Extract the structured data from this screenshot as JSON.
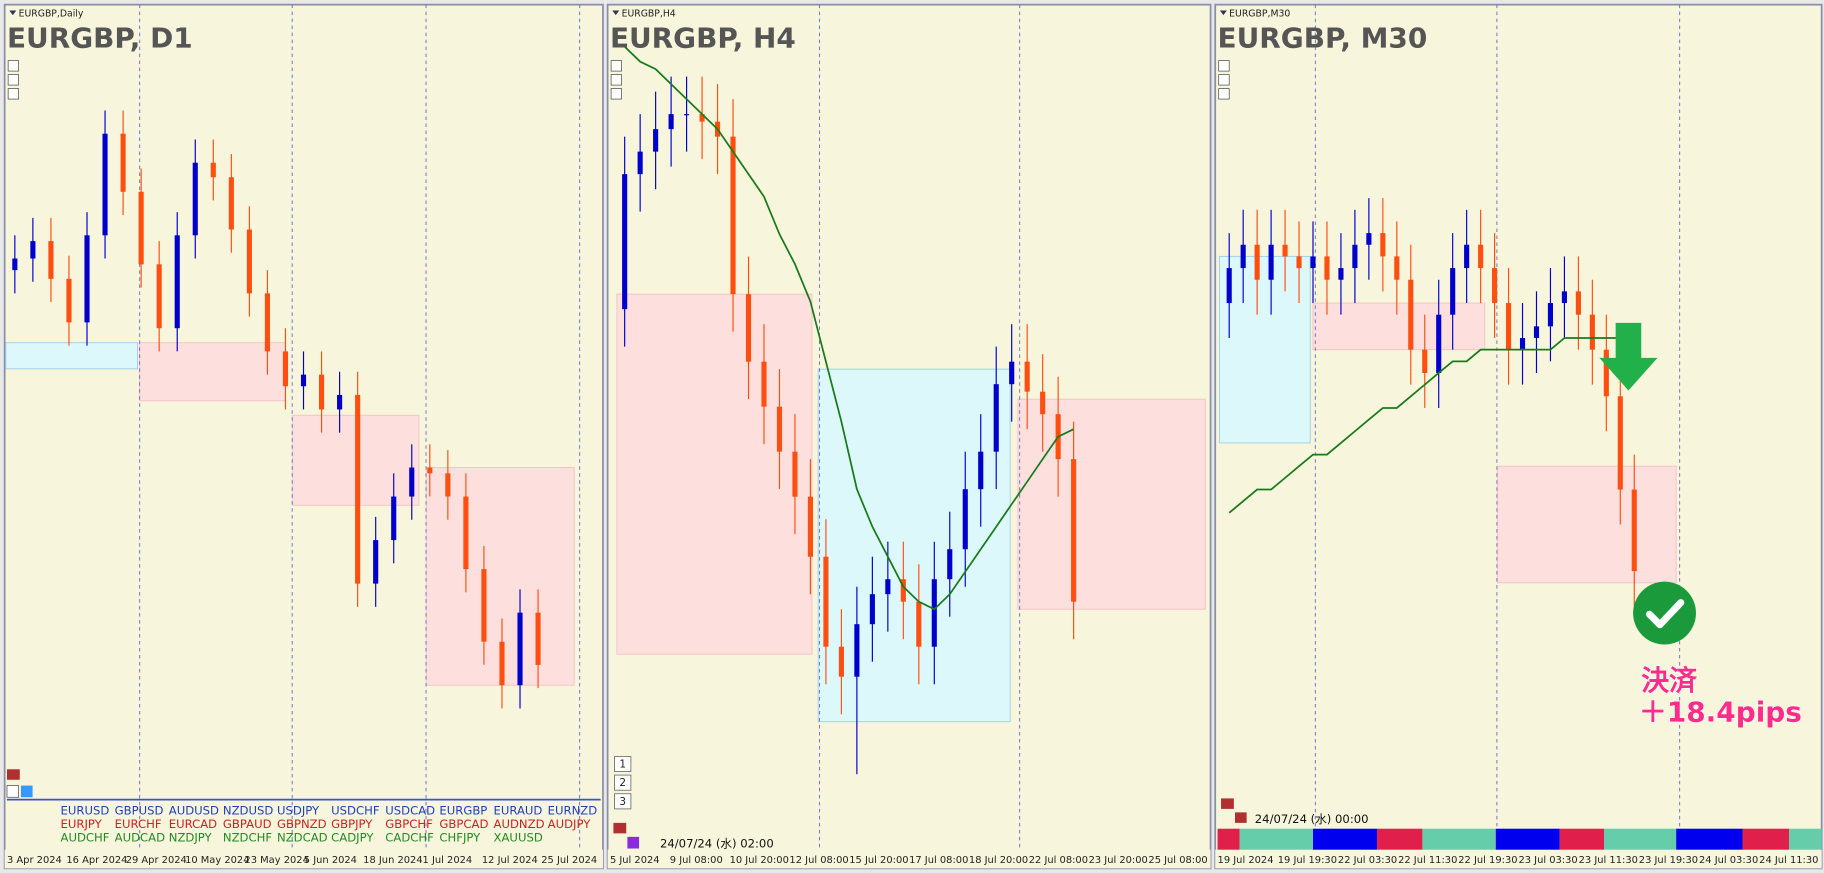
{
  "chart_data": [
    {
      "type": "candlestick",
      "label": "EURGBP,Daily",
      "title": "EURGBP, D1",
      "x_labels": [
        "3 Apr 2024",
        "16 Apr 2024",
        "29 Apr 2024",
        "10 May 2024",
        "23 May 2024",
        "5 Jun 2024",
        "18 Jun 2024",
        "1 Jul 2024",
        "12 Jul 2024",
        "25 Jul 2024"
      ],
      "ylim": [
        0.8364,
        0.8625
      ],
      "up_color": "#0000cc",
      "down_color": "#ff4f10",
      "open": [
        0.8548,
        0.8552,
        0.8558,
        0.8545,
        0.853,
        0.856,
        0.8595,
        0.8575,
        0.855,
        0.8528,
        0.856,
        0.8585,
        0.858,
        0.8562,
        0.854,
        0.852,
        0.8508,
        0.8512,
        0.85,
        0.8505,
        0.844,
        0.8455,
        0.847,
        0.848,
        0.8478,
        0.847,
        0.8445,
        0.842,
        0.8405,
        0.843
      ],
      "high": [
        0.856,
        0.8566,
        0.8566,
        0.8553,
        0.8568,
        0.8603,
        0.8603,
        0.8583,
        0.8558,
        0.8568,
        0.8593,
        0.8593,
        0.8588,
        0.857,
        0.8548,
        0.8528,
        0.852,
        0.852,
        0.8513,
        0.8513,
        0.8463,
        0.8478,
        0.8488,
        0.8488,
        0.8486,
        0.8478,
        0.8453,
        0.8428,
        0.8438,
        0.8438
      ],
      "low": [
        0.854,
        0.8544,
        0.8537,
        0.8522,
        0.8522,
        0.8552,
        0.8567,
        0.8542,
        0.852,
        0.852,
        0.8552,
        0.8572,
        0.8554,
        0.8532,
        0.8512,
        0.85,
        0.85,
        0.8492,
        0.8492,
        0.8432,
        0.8432,
        0.8447,
        0.8462,
        0.847,
        0.8462,
        0.8437,
        0.8412,
        0.8397,
        0.8397,
        0.8404
      ],
      "close": [
        0.8552,
        0.8558,
        0.8545,
        0.853,
        0.856,
        0.8595,
        0.8575,
        0.855,
        0.8528,
        0.856,
        0.8585,
        0.858,
        0.8562,
        0.854,
        0.852,
        0.8508,
        0.8512,
        0.85,
        0.8505,
        0.844,
        0.8455,
        0.847,
        0.848,
        0.8478,
        0.847,
        0.8445,
        0.842,
        0.8405,
        0.843,
        0.8412
      ],
      "zones": [
        {
          "start": 0,
          "end": 7.3,
          "low": 0.8514,
          "high": 0.8523,
          "color": "#ddf8fb"
        },
        {
          "start": 7.4,
          "end": 15.5,
          "low": 0.8503,
          "high": 0.8523,
          "color": "#fde0de"
        },
        {
          "start": 15.9,
          "end": 22.9,
          "low": 0.8467,
          "high": 0.8498,
          "color": "#fde0de"
        },
        {
          "start": 23.3,
          "end": 31.5,
          "low": 0.8405,
          "high": 0.848,
          "color": "#fde0de"
        }
      ]
    },
    {
      "type": "candlestick",
      "label": "EURGBP,H4",
      "title": "EURGBP, H4",
      "x_labels": [
        "5 Jul 2024",
        "9 Jul 08:00",
        "10 Jul 20:00",
        "12 Jul 08:00",
        "15 Jul 20:00",
        "17 Jul 08:00",
        "18 Jul 20:00",
        "22 Jul 08:00",
        "23 Jul 20:00",
        "25 Jul 08:00"
      ],
      "ylim": [
        0.8374,
        0.8475
      ],
      "up_color": "#0000cc",
      "down_color": "#ff4f10",
      "open": [
        0.844,
        0.8458,
        0.8461,
        0.8464,
        0.8466,
        0.8466,
        0.8465,
        0.8463,
        0.8442,
        0.8433,
        0.8427,
        0.8421,
        0.8415,
        0.8407,
        0.8395,
        0.8391,
        0.8398,
        0.8402,
        0.8404,
        0.8401,
        0.8395,
        0.8404,
        0.8408,
        0.8416,
        0.8421,
        0.843,
        0.8433,
        0.8429,
        0.8426,
        0.842
      ],
      "high": [
        0.8463,
        0.8466,
        0.8469,
        0.8471,
        0.8471,
        0.8471,
        0.847,
        0.8468,
        0.8447,
        0.8438,
        0.8432,
        0.8426,
        0.842,
        0.8412,
        0.84,
        0.8403,
        0.8407,
        0.8409,
        0.8409,
        0.8406,
        0.8409,
        0.8413,
        0.8421,
        0.8426,
        0.8435,
        0.8438,
        0.8438,
        0.8434,
        0.8431,
        0.8425
      ],
      "low": [
        0.8435,
        0.8453,
        0.8456,
        0.8459,
        0.8461,
        0.846,
        0.8458,
        0.8437,
        0.8428,
        0.8422,
        0.8416,
        0.841,
        0.8402,
        0.839,
        0.8386,
        0.8378,
        0.8393,
        0.8397,
        0.8396,
        0.839,
        0.839,
        0.8399,
        0.8403,
        0.8411,
        0.8416,
        0.8425,
        0.8424,
        0.8421,
        0.8415,
        0.8396
      ],
      "close": [
        0.8458,
        0.8461,
        0.8464,
        0.8466,
        0.8466,
        0.8465,
        0.8463,
        0.8442,
        0.8433,
        0.8427,
        0.8421,
        0.8415,
        0.8407,
        0.8395,
        0.8391,
        0.8398,
        0.8402,
        0.8404,
        0.8401,
        0.8395,
        0.8404,
        0.8408,
        0.8416,
        0.8421,
        0.843,
        0.8433,
        0.8429,
        0.8426,
        0.842,
        0.8401
      ],
      "ma": {
        "color": "#1a7a1a",
        "values": [
          0.8475,
          0.8473,
          0.8472,
          0.847,
          0.8468,
          0.8466,
          0.8464,
          0.8461,
          0.8458,
          0.8455,
          0.845,
          0.8446,
          0.8441,
          0.8433,
          0.8425,
          0.8416,
          0.8411,
          0.8407,
          0.8403,
          0.8401,
          0.84,
          0.8402,
          0.8405,
          0.8408,
          0.8411,
          0.8414,
          0.8417,
          0.842,
          0.8423,
          0.8424
        ]
      },
      "zones": [
        {
          "start": 0,
          "end": 12.6,
          "low": 0.8394,
          "high": 0.8442,
          "color": "#fde0de"
        },
        {
          "start": 13.0,
          "end": 25.4,
          "low": 0.8385,
          "high": 0.8432,
          "color": "#ddf8fb"
        },
        {
          "start": 25.9,
          "end": 38.0,
          "low": 0.84,
          "high": 0.8428,
          "color": "#fde0de"
        }
      ]
    },
    {
      "type": "candlestick",
      "label": "EURGBP,M30",
      "title": "EURGBP, M30",
      "x_labels": [
        "19 Jul 2024",
        "19 Jul 19:30",
        "22 Jul 03:30",
        "22 Jul 11:30",
        "22 Jul 19:30",
        "23 Jul 03:30",
        "23 Jul 11:30",
        "23 Jul 19:30",
        "24 Jul 03:30",
        "24 Jul 11:30"
      ],
      "ylim": [
        0.8395,
        0.846
      ],
      "up_color": "#0000cc",
      "down_color": "#ff4f10",
      "open": [
        0.8438,
        0.8441,
        0.8443,
        0.844,
        0.8443,
        0.8442,
        0.8441,
        0.8442,
        0.844,
        0.8441,
        0.8443,
        0.8444,
        0.8442,
        0.844,
        0.8434,
        0.8432,
        0.8437,
        0.8441,
        0.8443,
        0.8441,
        0.8438,
        0.8434,
        0.8435,
        0.8436,
        0.8438,
        0.8439,
        0.8437,
        0.8434,
        0.843,
        0.8422
      ],
      "high": [
        0.8444,
        0.8446,
        0.8446,
        0.8446,
        0.8446,
        0.8445,
        0.8445,
        0.8445,
        0.8444,
        0.8446,
        0.8447,
        0.8447,
        0.8445,
        0.8443,
        0.8437,
        0.844,
        0.8444,
        0.8446,
        0.8446,
        0.8444,
        0.8441,
        0.8438,
        0.8439,
        0.8441,
        0.8442,
        0.8442,
        0.844,
        0.8437,
        0.8433,
        0.8425
      ],
      "low": [
        0.8435,
        0.8438,
        0.8437,
        0.8437,
        0.8439,
        0.8438,
        0.8438,
        0.8437,
        0.8437,
        0.8438,
        0.844,
        0.8439,
        0.8437,
        0.8431,
        0.8429,
        0.8429,
        0.8434,
        0.8438,
        0.8438,
        0.8435,
        0.8431,
        0.8431,
        0.8432,
        0.8433,
        0.8435,
        0.8434,
        0.8431,
        0.8427,
        0.8419,
        0.8412
      ],
      "close": [
        0.8441,
        0.8443,
        0.844,
        0.8443,
        0.8442,
        0.8441,
        0.8442,
        0.844,
        0.8441,
        0.8443,
        0.8444,
        0.8442,
        0.844,
        0.8434,
        0.8432,
        0.8437,
        0.8441,
        0.8443,
        0.8441,
        0.8438,
        0.8434,
        0.8435,
        0.8436,
        0.8438,
        0.8439,
        0.8437,
        0.8434,
        0.843,
        0.8422,
        0.8415
      ],
      "ma": {
        "color": "#1a7a1a",
        "values": [
          0.842,
          0.8421,
          0.8422,
          0.8422,
          0.8423,
          0.8424,
          0.8425,
          0.8425,
          0.8426,
          0.8427,
          0.8428,
          0.8429,
          0.8429,
          0.843,
          0.8431,
          0.8432,
          0.8433,
          0.8433,
          0.8434,
          0.8434,
          0.8434,
          0.8434,
          0.8434,
          0.8434,
          0.8435,
          0.8435,
          0.8435,
          0.8435,
          0.8435,
          0.8435
        ]
      },
      "zones": [
        {
          "start": -0.2,
          "end": 6.3,
          "low": 0.8426,
          "high": 0.8442,
          "color": "#ddf8fb"
        },
        {
          "start": 6.5,
          "end": 18.8,
          "low": 0.8434,
          "high": 0.8438,
          "color": "#fde0de"
        },
        {
          "start": 19.7,
          "end": 32.5,
          "low": 0.8414,
          "high": 0.8424,
          "color": "#fde0de"
        }
      ]
    }
  ],
  "currency_table": {
    "rows": [
      {
        "color": "#1f3fbf",
        "items": [
          "EURUSD",
          "GBPUSD",
          "AUDUSD",
          "NZDUSD",
          "USDJPY",
          "USDCHF",
          "USDCAD",
          "EURGBP",
          "EURAUD",
          "EURNZD"
        ]
      },
      {
        "color": "#d02020",
        "items": [
          "EURJPY",
          "EURCHF",
          "EURCAD",
          "GBPAUD",
          "GBPNZD",
          "GBPJPY",
          "GBPCHF",
          "GBPCAD",
          "AUDNZD",
          "AUDJPY"
        ]
      },
      {
        "color": "#228b22",
        "items": [
          "AUDCHF",
          "AUDCAD",
          "NZDJPY",
          "NZDCHF",
          "NZDCAD",
          "CADJPY",
          "CADCHF",
          "CHFJPY",
          "XAUUSD"
        ]
      }
    ]
  },
  "h4_timestamp": "24/07/24 (水) 02:00",
  "m30_timestamp": "24/07/24 (水) 00:00",
  "buttons": [
    "1",
    "2",
    "3"
  ],
  "annotation": {
    "line1": "決済",
    "line2": "＋18.4pips"
  }
}
